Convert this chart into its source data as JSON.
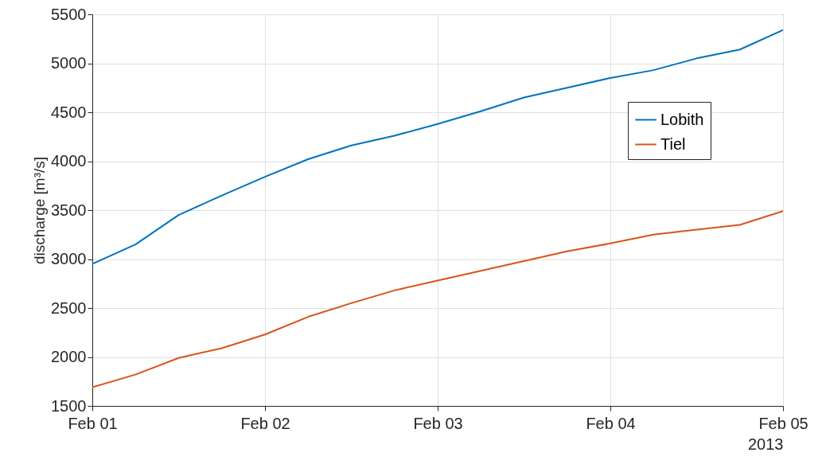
{
  "chart_data": {
    "type": "line",
    "ylabel": "discharge [m³/s]",
    "annotations": [
      "2013"
    ],
    "x": [
      "2013-02-01T00:00",
      "2013-02-01T06:00",
      "2013-02-01T12:00",
      "2013-02-01T18:00",
      "2013-02-02T00:00",
      "2013-02-02T06:00",
      "2013-02-02T12:00",
      "2013-02-02T18:00",
      "2013-02-03T00:00",
      "2013-02-03T06:00",
      "2013-02-03T12:00",
      "2013-02-03T18:00",
      "2013-02-04T00:00",
      "2013-02-04T06:00",
      "2013-02-04T12:00",
      "2013-02-04T18:00",
      "2013-02-05T00:00"
    ],
    "series": [
      {
        "name": "Lobith",
        "color": "#0072bd",
        "values": [
          2950,
          3150,
          3450,
          3650,
          3840,
          4020,
          4160,
          4260,
          4380,
          4510,
          4650,
          4750,
          4850,
          4930,
          5050,
          5140,
          5340
        ]
      },
      {
        "name": "Tiel",
        "color": "#d95319",
        "values": [
          1690,
          1820,
          1990,
          2090,
          2230,
          2410,
          2550,
          2680,
          2780,
          2880,
          2980,
          3080,
          3160,
          3250,
          3300,
          3350,
          3490
        ]
      }
    ],
    "xlim": [
      "2013-02-01T00:00",
      "2013-02-05T00:00"
    ],
    "xticks": [
      {
        "value": "2013-02-01T00:00",
        "label": "Feb 01"
      },
      {
        "value": "2013-02-02T00:00",
        "label": "Feb 02"
      },
      {
        "value": "2013-02-03T00:00",
        "label": "Feb 03"
      },
      {
        "value": "2013-02-04T00:00",
        "label": "Feb 04"
      },
      {
        "value": "2013-02-05T00:00",
        "label": "Feb 05"
      }
    ],
    "ylim": [
      1500,
      5500
    ],
    "yticks": [
      1500,
      2000,
      2500,
      3000,
      3500,
      4000,
      4500,
      5000,
      5500
    ],
    "grid": true,
    "legend": "top right",
    "line_style": "solid",
    "marker": "none"
  }
}
